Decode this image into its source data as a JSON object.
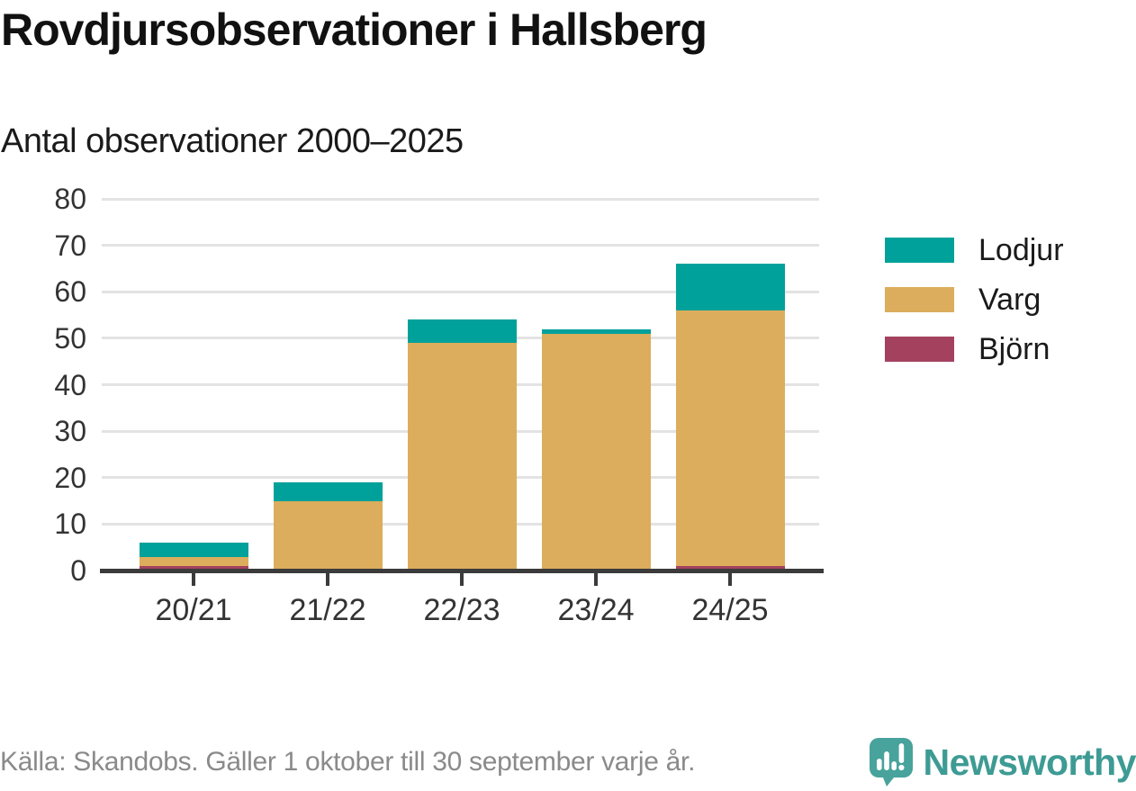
{
  "header": {
    "title": "Rovdjursobservationer i Hallsberg",
    "subtitle": "Antal observationer 2000–2025"
  },
  "chart_data": {
    "type": "bar",
    "stacked": true,
    "title": "Rovdjursobservationer i Hallsberg",
    "subtitle": "Antal observationer 2000–2025",
    "categories": [
      "20/21",
      "21/22",
      "22/23",
      "23/24",
      "24/25"
    ],
    "series": [
      {
        "name": "Björn",
        "color": "#a4415f",
        "values": [
          1,
          0,
          0,
          0,
          1
        ]
      },
      {
        "name": "Varg",
        "color": "#dbad5c",
        "values": [
          2,
          15,
          49,
          51,
          55
        ]
      },
      {
        "name": "Lodjur",
        "color": "#00a19a",
        "values": [
          3,
          4,
          5,
          1,
          10
        ]
      }
    ],
    "totals": [
      6,
      19,
      54,
      52,
      66
    ],
    "xlabel": "",
    "ylabel": "",
    "ylim": [
      0,
      80
    ],
    "yticks": [
      0,
      10,
      20,
      30,
      40,
      50,
      60,
      70,
      80
    ],
    "grid": "horizontal",
    "legend_position": "right",
    "legend_order": [
      "Lodjur",
      "Varg",
      "Björn"
    ]
  },
  "legend": {
    "items": [
      {
        "label": "Lodjur",
        "color": "#00a19a"
      },
      {
        "label": "Varg",
        "color": "#dbad5c"
      },
      {
        "label": "Björn",
        "color": "#a4415f"
      }
    ]
  },
  "footer": {
    "source": "Källa: Skandobs. Gäller 1 oktober till 30 september varje år.",
    "brand": "Newsworthy"
  },
  "colors": {
    "lodjur": "#00a19a",
    "varg": "#dbad5c",
    "bjorn": "#a4415f",
    "axis": "#3b3b3b",
    "gridline": "#e3e3e3",
    "text": "#1a1a1a",
    "muted_text": "#8a8a8a",
    "brand_teal": "#3d9b94",
    "logo_teal": "#47a39c"
  }
}
